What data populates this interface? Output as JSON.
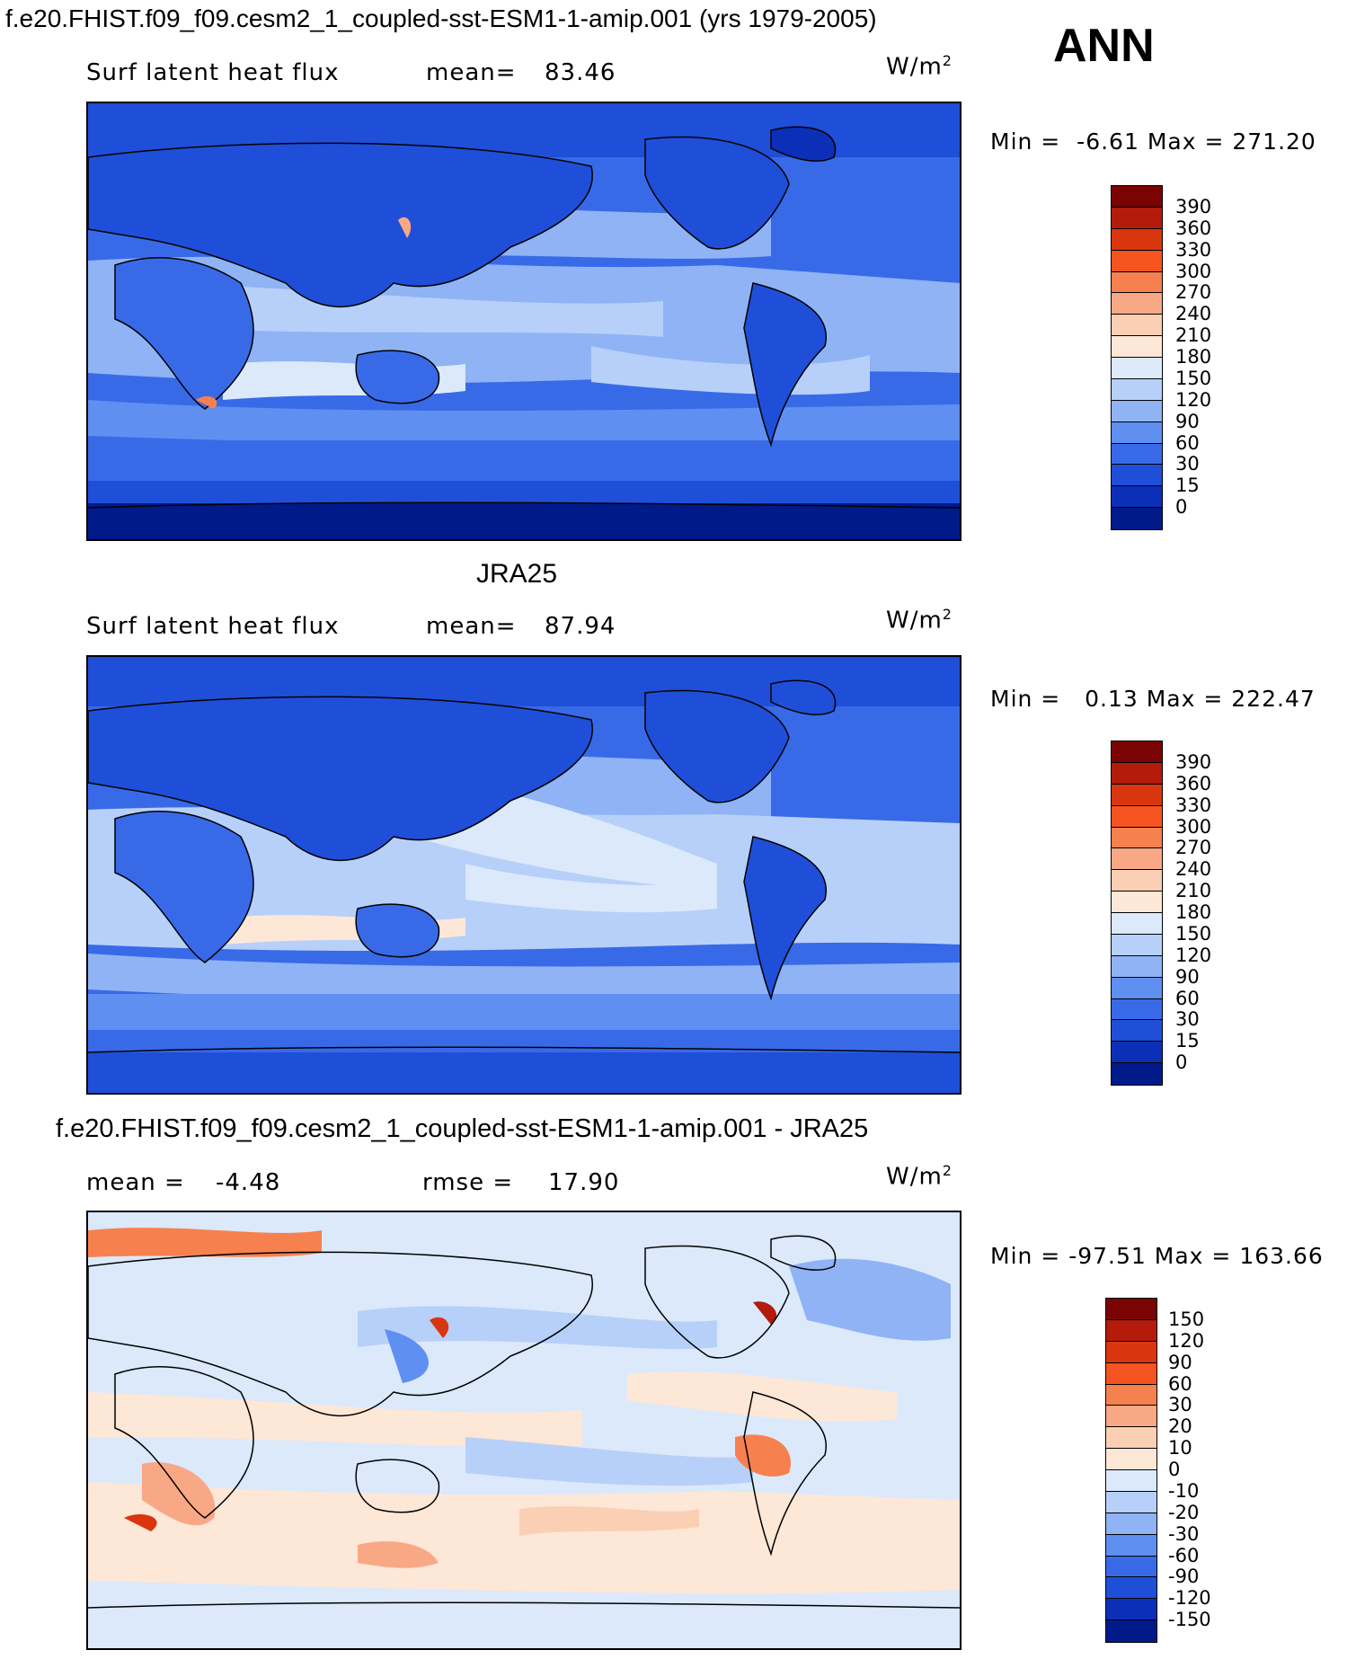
{
  "header": {
    "title": "f.e20.FHIST.f09_f09.cesm2_1_coupled-sst-ESM1-1-amip.001 (yrs 1979-2005)",
    "season": "ANN"
  },
  "panels": [
    {
      "variable": "Surf latent heat flux",
      "stat1_label": "mean=",
      "stat1_value": "83.46",
      "units": "W/m",
      "units_sup": "2",
      "min_label": "Min =",
      "min_value": "-6.61",
      "max_label": "Max =",
      "max_value": "271.20",
      "legend_ticks": [
        "390",
        "360",
        "330",
        "300",
        "270",
        "240",
        "210",
        "180",
        "150",
        "120",
        "90",
        "60",
        "30",
        "15",
        "0"
      ]
    },
    {
      "panel_title": "JRA25",
      "variable": "Surf latent heat flux",
      "stat1_label": "mean=",
      "stat1_value": "87.94",
      "units": "W/m",
      "units_sup": "2",
      "min_label": "Min =",
      "min_value": "0.13",
      "max_label": "Max =",
      "max_value": "222.47",
      "legend_ticks": [
        "390",
        "360",
        "330",
        "300",
        "270",
        "240",
        "210",
        "180",
        "150",
        "120",
        "90",
        "60",
        "30",
        "15",
        "0"
      ]
    },
    {
      "panel_title": "f.e20.FHIST.f09_f09.cesm2_1_coupled-sst-ESM1-1-amip.001 - JRA25",
      "stat1_label": "mean =",
      "stat1_value": "-4.48",
      "stat2_label": "rmse =",
      "stat2_value": "17.90",
      "units": "W/m",
      "units_sup": "2",
      "min_label": "Min =",
      "min_value": "-97.51",
      "max_label": "Max =",
      "max_value": "163.66",
      "legend_ticks": [
        "150",
        "120",
        "90",
        "60",
        "30",
        "20",
        "10",
        "0",
        "-10",
        "-20",
        "-30",
        "-60",
        "-90",
        "-120",
        "-150"
      ]
    }
  ],
  "colors": {
    "abs_scale": [
      "#7a0403",
      "#b31b0a",
      "#d9360f",
      "#f55420",
      "#f7804f",
      "#f9a886",
      "#fbcfb3",
      "#fde7d7",
      "#dbe9fb",
      "#b7d0f9",
      "#8fb3f4",
      "#5f8ff0",
      "#386ae8",
      "#1f4fd8",
      "#0c2fb8",
      "#001a8a"
    ],
    "diff_scale": [
      "#7a0403",
      "#b31b0a",
      "#d9360f",
      "#f55420",
      "#f7804f",
      "#f9a886",
      "#fbcfb3",
      "#fde7d7",
      "#dbe9fb",
      "#b7d0f9",
      "#8fb3f4",
      "#5f8ff0",
      "#386ae8",
      "#1f4fd8",
      "#0c2fb8",
      "#001a8a"
    ]
  },
  "chart_data": [
    {
      "type": "heatmap",
      "title": "Surf latent heat flux",
      "units": "W/m2",
      "mean": 83.46,
      "min": -6.61,
      "max": 271.2,
      "levels": [
        0,
        15,
        30,
        60,
        90,
        120,
        150,
        180,
        210,
        240,
        270,
        300,
        330,
        360,
        390
      ]
    },
    {
      "type": "heatmap",
      "title": "JRA25",
      "units": "W/m2",
      "mean": 87.94,
      "min": 0.13,
      "max": 222.47,
      "levels": [
        0,
        15,
        30,
        60,
        90,
        120,
        150,
        180,
        210,
        240,
        270,
        300,
        330,
        360,
        390
      ]
    },
    {
      "type": "heatmap",
      "title": "f.e20.FHIST.f09_f09.cesm2_1_coupled-sst-ESM1-1-amip.001 - JRA25",
      "units": "W/m2",
      "mean": -4.48,
      "rmse": 17.9,
      "min": -97.51,
      "max": 163.66,
      "levels": [
        -150,
        -120,
        -90,
        -60,
        -30,
        -20,
        -10,
        0,
        10,
        20,
        30,
        60,
        90,
        120,
        150
      ]
    }
  ]
}
